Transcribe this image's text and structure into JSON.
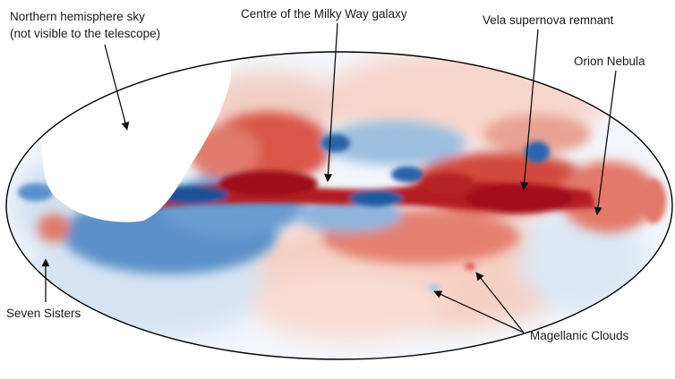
{
  "colors": {
    "background": "#ffffff",
    "red_strong": "#a5101c",
    "red_mid": "#d9574a",
    "red_light": "#f4c4b8",
    "blue_strong": "#1a4f97",
    "blue_mid": "#3d7cc0",
    "blue_light": "#c9dcee",
    "outline": "#000000",
    "arrow": "#111111"
  },
  "labels": {
    "northern_line1": "Northern hemisphere sky",
    "northern_line2": "(not visible to the telescope)",
    "centre": "Centre of the Milky Way galaxy",
    "vela": "Vela supernova remnant",
    "orion": "Orion Nebula",
    "seven_sisters": "Seven Sisters",
    "magellanic": "Magellanic Clouds"
  }
}
